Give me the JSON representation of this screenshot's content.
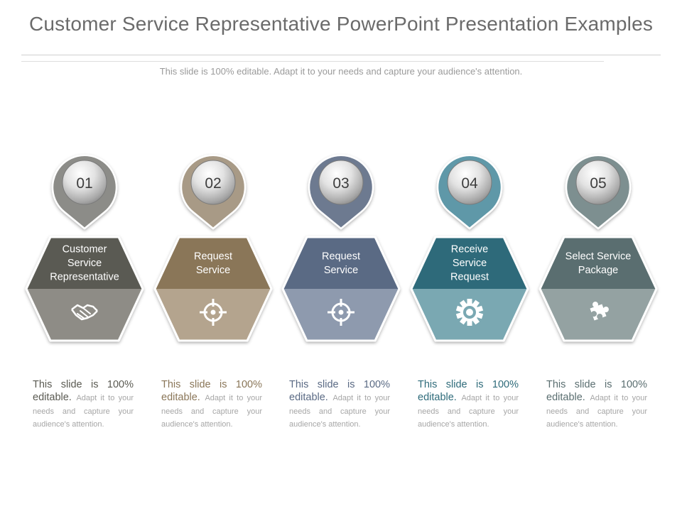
{
  "header": {
    "title": "Customer Service Representative PowerPoint Presentation Examples",
    "subtitle": "This slide is 100% editable. Adapt it to your needs and capture your audience's attention."
  },
  "steps": [
    {
      "number": "01",
      "label_lines": [
        "Customer",
        "Service",
        "Representative"
      ],
      "icon": "handshake-icon",
      "pin_color": "#8c8c88",
      "top_color": "#5a5a52",
      "bottom_color": "#8e8c86",
      "text_color": "#5a5a52",
      "desc_main": "This slide is 100% editable.",
      "desc_rest": "Adapt it to your needs and capture your audience's attention."
    },
    {
      "number": "02",
      "label_lines": [
        "Request",
        "Service"
      ],
      "icon": "target-icon",
      "pin_color": "#a89a86",
      "top_color": "#8a7658",
      "bottom_color": "#b4a48e",
      "text_color": "#8a7658",
      "desc_main": "This slide is 100% editable.",
      "desc_rest": "Adapt it to your needs and capture your audience's attention."
    },
    {
      "number": "03",
      "label_lines": [
        "Request",
        "Service"
      ],
      "icon": "target-icon",
      "pin_color": "#6d7a90",
      "top_color": "#5a6a84",
      "bottom_color": "#8e9aae",
      "text_color": "#5a6a84",
      "desc_main": "This slide is 100% editable.",
      "desc_rest": "Adapt it to your needs and capture your audience's attention."
    },
    {
      "number": "04",
      "label_lines": [
        "Receive",
        "Service",
        "Request"
      ],
      "icon": "gear-icon",
      "pin_color": "#5e98a8",
      "top_color": "#2e6b7a",
      "bottom_color": "#7aa8b2",
      "text_color": "#2e6b7a",
      "desc_main": "This slide is 100% editable.",
      "desc_rest": "Adapt it to your needs and capture your audience's attention."
    },
    {
      "number": "05",
      "label_lines": [
        "Select Service",
        "Package"
      ],
      "icon": "puzzle-icon",
      "pin_color": "#7d8f90",
      "top_color": "#5a6e70",
      "bottom_color": "#94a2a2",
      "text_color": "#5a6e70",
      "desc_main": "This slide is 100% editable.",
      "desc_rest": "Adapt it to your needs and capture your audience's attention."
    }
  ]
}
